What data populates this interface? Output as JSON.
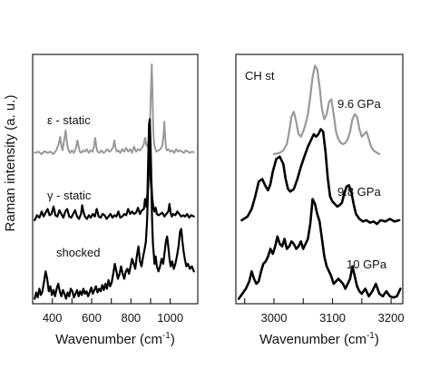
{
  "chart_data": [
    {
      "type": "line",
      "panel": "left",
      "xlabel": "Wavenumber (cm-1)",
      "xlabel_base": "Wavenumber (cm",
      "xlabel_sup": "-1",
      "xlabel_close": ")",
      "ylabel": "Raman intensity (a. u.)",
      "xlim": [
        300,
        1140
      ],
      "xticks": [
        400,
        500,
        600,
        700,
        800,
        900,
        1000
      ],
      "xtick_labels": [
        "400",
        "600",
        "800",
        "1000"
      ],
      "xtick_labeled_values": [
        400,
        600,
        800,
        1000
      ],
      "ylim": [
        0,
        10
      ],
      "grid": false,
      "series": [
        {
          "name": "ε - static",
          "color": "#999999",
          "stroke_width": 2,
          "x": [
            310,
            330,
            345,
            360,
            375,
            390,
            405,
            420,
            432,
            440,
            446,
            452,
            460,
            468,
            474,
            480,
            490,
            500,
            510,
            520,
            528,
            534,
            540,
            548,
            556,
            565,
            575,
            585,
            595,
            605,
            612,
            618,
            624,
            630,
            640,
            650,
            660,
            670,
            680,
            690,
            700,
            710,
            716,
            722,
            728,
            736,
            746,
            756,
            766,
            776,
            786,
            796,
            806,
            816,
            826,
            836,
            846,
            856,
            866,
            872,
            878,
            884,
            890,
            894,
            898,
            902,
            906,
            910,
            914,
            918,
            924,
            930,
            940,
            950,
            960,
            966,
            970,
            974,
            978,
            982,
            990,
            1000,
            1010,
            1020,
            1030,
            1040,
            1050,
            1060,
            1070,
            1080,
            1090,
            1100,
            1110,
            1120
          ],
          "y": [
            6.05,
            6.1,
            6.0,
            6.12,
            6.05,
            6.1,
            6.0,
            6.15,
            6.4,
            6.7,
            6.35,
            6.15,
            6.55,
            6.95,
            6.5,
            6.2,
            6.05,
            6.15,
            6.05,
            6.25,
            6.55,
            6.3,
            6.1,
            6.05,
            6.15,
            6.1,
            6.2,
            6.05,
            6.15,
            6.1,
            6.3,
            6.65,
            6.3,
            6.1,
            6.05,
            6.15,
            6.05,
            6.1,
            6.2,
            6.1,
            6.15,
            6.3,
            6.55,
            6.25,
            6.1,
            6.15,
            6.05,
            6.2,
            6.1,
            6.25,
            6.1,
            6.2,
            6.05,
            6.3,
            6.1,
            6.2,
            6.15,
            6.25,
            6.4,
            6.65,
            6.4,
            6.3,
            6.5,
            6.9,
            7.6,
            8.6,
            9.6,
            8.3,
            6.9,
            6.4,
            6.2,
            6.1,
            6.15,
            6.2,
            6.35,
            6.8,
            7.3,
            6.7,
            6.3,
            6.15,
            6.2,
            6.1,
            6.15,
            6.05,
            6.2,
            6.1,
            6.15,
            6.1,
            6.05,
            6.15,
            6.1,
            6.05,
            6.1,
            6.08
          ]
        },
        {
          "name": "γ - static",
          "color": "#000000",
          "stroke_width": 2.2,
          "x": [
            310,
            322,
            334,
            346,
            356,
            366,
            376,
            386,
            396,
            406,
            416,
            426,
            436,
            446,
            456,
            466,
            476,
            486,
            496,
            506,
            516,
            526,
            536,
            546,
            552,
            558,
            566,
            576,
            586,
            596,
            606,
            616,
            626,
            636,
            646,
            656,
            666,
            676,
            686,
            696,
            706,
            716,
            726,
            736,
            746,
            756,
            766,
            776,
            786,
            796,
            806,
            816,
            826,
            836,
            846,
            856,
            866,
            872,
            878,
            884,
            888,
            892,
            896,
            900,
            904,
            908,
            912,
            916,
            920,
            926,
            932,
            940,
            950,
            960,
            970,
            980,
            990,
            996,
            1002,
            1008,
            1016,
            1026,
            1036,
            1046,
            1056,
            1066,
            1076,
            1086,
            1096,
            1106,
            1120
          ],
          "y": [
            3.35,
            3.55,
            3.45,
            3.7,
            3.5,
            3.65,
            3.8,
            3.55,
            3.6,
            3.9,
            3.55,
            3.5,
            3.75,
            3.6,
            3.45,
            3.7,
            3.8,
            3.5,
            3.45,
            3.6,
            3.75,
            3.5,
            3.4,
            3.6,
            3.95,
            3.7,
            3.5,
            3.4,
            3.55,
            3.45,
            3.6,
            3.5,
            3.8,
            3.5,
            3.45,
            3.6,
            3.55,
            3.4,
            3.5,
            3.6,
            3.45,
            3.55,
            3.5,
            3.7,
            3.45,
            3.5,
            3.6,
            3.55,
            3.8,
            3.6,
            3.7,
            3.6,
            3.65,
            3.85,
            3.6,
            3.75,
            3.8,
            4.2,
            3.9,
            4.4,
            5.8,
            7.2,
            7.4,
            6.4,
            4.9,
            4.3,
            4.0,
            3.8,
            3.7,
            3.85,
            3.6,
            3.55,
            3.6,
            3.65,
            3.5,
            3.6,
            3.7,
            4.0,
            3.65,
            3.5,
            3.6,
            3.55,
            3.7,
            3.6,
            3.5,
            3.55,
            3.5,
            3.6,
            3.45,
            3.55,
            3.5
          ]
        },
        {
          "name": "shocked",
          "color": "#000000",
          "stroke_width": 2.2,
          "x": [
            310,
            318,
            326,
            334,
            342,
            350,
            358,
            366,
            374,
            382,
            390,
            398,
            406,
            414,
            422,
            430,
            438,
            446,
            454,
            462,
            470,
            478,
            486,
            494,
            502,
            510,
            518,
            526,
            534,
            542,
            550,
            558,
            566,
            574,
            582,
            590,
            598,
            606,
            614,
            622,
            630,
            638,
            646,
            654,
            662,
            670,
            678,
            686,
            694,
            702,
            710,
            718,
            726,
            734,
            742,
            750,
            758,
            766,
            774,
            782,
            790,
            798,
            806,
            814,
            822,
            830,
            838,
            846,
            854,
            862,
            870,
            876,
            882,
            888,
            892,
            896,
            900,
            904,
            908,
            912,
            916,
            920,
            926,
            932,
            940,
            948,
            956,
            964,
            972,
            978,
            984,
            990,
            996,
            1002,
            1010,
            1018,
            1026,
            1034,
            1042,
            1050,
            1056,
            1062,
            1068,
            1074,
            1082,
            1090,
            1100,
            1110,
            1120
          ],
          "y": [
            0.2,
            0.45,
            0.25,
            0.6,
            0.35,
            0.5,
            0.9,
            1.3,
            1.0,
            0.5,
            0.7,
            0.35,
            0.55,
            0.3,
            0.6,
            0.8,
            0.5,
            0.3,
            0.55,
            0.4,
            0.2,
            0.45,
            0.3,
            0.6,
            0.5,
            0.25,
            0.4,
            0.55,
            0.3,
            0.5,
            0.35,
            0.6,
            0.4,
            0.5,
            0.3,
            0.45,
            0.65,
            0.4,
            0.55,
            0.7,
            0.45,
            0.6,
            0.5,
            0.75,
            0.55,
            0.8,
            0.6,
            0.95,
            0.7,
            0.85,
            1.2,
            1.6,
            1.3,
            1.0,
            1.2,
            1.5,
            1.2,
            1.0,
            1.3,
            1.4,
            1.2,
            1.5,
            1.8,
            1.6,
            1.4,
            1.9,
            2.3,
            1.7,
            1.5,
            1.9,
            2.2,
            2.5,
            3.3,
            4.8,
            6.4,
            6.3,
            5.0,
            4.6,
            3.3,
            2.4,
            2.0,
            1.6,
            1.9,
            1.5,
            1.3,
            1.5,
            1.8,
            1.6,
            2.1,
            2.5,
            2.7,
            2.3,
            1.8,
            1.5,
            1.7,
            1.4,
            1.6,
            1.9,
            2.3,
            2.9,
            3.0,
            2.5,
            2.1,
            1.8,
            1.5,
            1.6,
            1.4,
            1.5,
            1.3
          ]
        }
      ],
      "annotations": [
        {
          "text": "ε - static",
          "series": 0
        },
        {
          "text": "γ - static",
          "series": 1
        },
        {
          "text": "shocked",
          "series": 2
        }
      ]
    },
    {
      "type": "line",
      "panel": "right",
      "title": "CH st",
      "xlabel": "Wavenumber (cm-1)",
      "xlabel_base": "Wavenumber (cm",
      "xlabel_sup": "-1",
      "xlabel_close": ")",
      "xlim": [
        2935,
        3220
      ],
      "xticks": [
        2950,
        3000,
        3050,
        3100,
        3150,
        3200
      ],
      "xtick_labels": [
        "3000",
        "3100",
        "3200"
      ],
      "xtick_labeled_values": [
        3000,
        3100,
        3200
      ],
      "ylim": [
        0,
        10
      ],
      "grid": false,
      "series": [
        {
          "name": "9.6 GPa",
          "color": "#999999",
          "stroke_width": 2.2,
          "x": [
            3000,
            3010,
            3016,
            3022,
            3026,
            3030,
            3034,
            3038,
            3042,
            3046,
            3050,
            3054,
            3058,
            3062,
            3066,
            3070,
            3074,
            3078,
            3082,
            3086,
            3090,
            3094,
            3098,
            3102,
            3106,
            3110,
            3114,
            3118,
            3122,
            3126,
            3130,
            3134,
            3138,
            3142,
            3146,
            3150,
            3154,
            3158,
            3162,
            3166,
            3170,
            3176,
            3180
          ],
          "y": [
            6.0,
            6.05,
            6.15,
            6.4,
            6.9,
            7.5,
            7.7,
            7.3,
            6.8,
            6.7,
            6.9,
            7.2,
            7.6,
            8.3,
            9.1,
            9.55,
            9.4,
            8.7,
            7.8,
            7.4,
            7.6,
            8.1,
            8.2,
            7.6,
            6.9,
            6.6,
            6.45,
            6.4,
            6.45,
            6.6,
            6.9,
            7.4,
            7.6,
            7.5,
            7.0,
            6.7,
            6.8,
            6.9,
            6.6,
            6.3,
            6.15,
            6.05,
            6.0
          ]
        },
        {
          "name": "9.8 GPa",
          "color": "#000000",
          "stroke_width": 2.6,
          "x": [
            2945,
            2955,
            2962,
            2968,
            2974,
            2980,
            2986,
            2990,
            2994,
            2998,
            3004,
            3010,
            3016,
            3020,
            3024,
            3028,
            3034,
            3040,
            3046,
            3052,
            3058,
            3064,
            3068,
            3072,
            3076,
            3080,
            3084,
            3088,
            3092,
            3096,
            3100,
            3104,
            3108,
            3112,
            3116,
            3120,
            3124,
            3128,
            3132,
            3136,
            3140,
            3146,
            3152,
            3158,
            3164,
            3170,
            3176,
            3182,
            3190,
            3198,
            3206,
            3214
          ],
          "y": [
            3.35,
            3.5,
            3.8,
            4.3,
            4.9,
            5.0,
            4.7,
            4.55,
            4.8,
            5.3,
            5.8,
            5.9,
            5.6,
            5.0,
            4.6,
            4.5,
            4.6,
            5.0,
            5.5,
            5.9,
            6.3,
            6.6,
            6.8,
            6.7,
            6.8,
            7.0,
            6.9,
            6.1,
            5.0,
            4.3,
            4.1,
            4.0,
            3.9,
            3.95,
            4.05,
            4.4,
            4.7,
            4.75,
            4.5,
            4.0,
            3.6,
            3.4,
            3.3,
            3.35,
            3.25,
            3.3,
            3.2,
            3.35,
            3.3,
            3.4,
            3.3,
            3.35
          ]
        },
        {
          "name": "10 GPa",
          "color": "#000000",
          "stroke_width": 2.6,
          "x": [
            2940,
            2946,
            2952,
            2958,
            2962,
            2966,
            2970,
            2974,
            2978,
            2982,
            2986,
            2990,
            2994,
            2998,
            3002,
            3006,
            3010,
            3014,
            3018,
            3022,
            3026,
            3030,
            3034,
            3038,
            3042,
            3046,
            3050,
            3054,
            3058,
            3062,
            3066,
            3070,
            3074,
            3078,
            3082,
            3086,
            3090,
            3094,
            3098,
            3102,
            3106,
            3110,
            3114,
            3118,
            3122,
            3126,
            3130,
            3134,
            3138,
            3142,
            3146,
            3150,
            3156,
            3162,
            3168,
            3174,
            3180,
            3186,
            3192,
            3198,
            3204,
            3210,
            3216
          ],
          "y": [
            0.2,
            0.4,
            0.6,
            0.9,
            1.3,
            1.0,
            0.8,
            0.9,
            1.3,
            1.6,
            1.7,
            1.9,
            2.2,
            2.0,
            2.3,
            2.7,
            2.4,
            2.3,
            2.6,
            2.2,
            2.3,
            2.5,
            2.4,
            2.2,
            2.3,
            2.5,
            2.2,
            2.4,
            2.6,
            3.2,
            4.2,
            4.0,
            3.6,
            3.3,
            2.6,
            1.9,
            1.5,
            1.3,
            1.1,
            0.8,
            0.9,
            1.0,
            0.9,
            0.8,
            0.6,
            0.8,
            1.0,
            1.5,
            1.1,
            0.7,
            0.5,
            0.4,
            0.6,
            0.3,
            0.5,
            0.8,
            0.4,
            0.3,
            0.5,
            0.3,
            0.25,
            0.3,
            0.6
          ]
        }
      ],
      "annotations": [
        {
          "text": "9.6 GPa",
          "series": 0
        },
        {
          "text": "9.8 GPa",
          "series": 1
        },
        {
          "text": "10 GPa",
          "series": 2
        }
      ]
    }
  ]
}
